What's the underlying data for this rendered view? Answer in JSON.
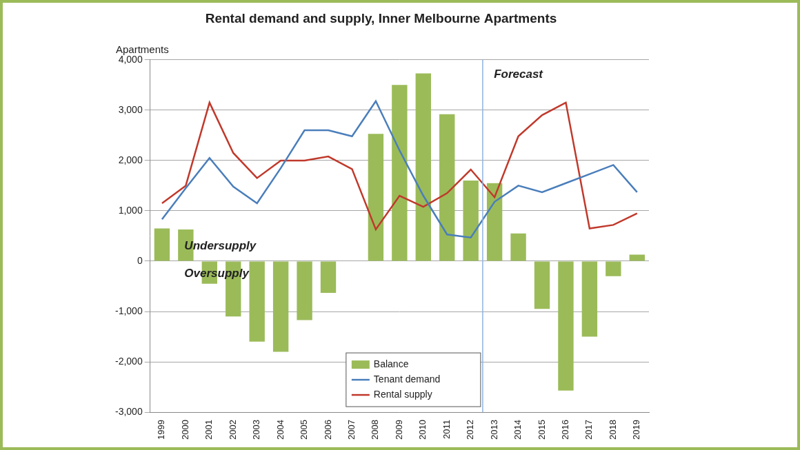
{
  "chart_data": {
    "type": "bar",
    "title": "Rental demand and supply, Inner Melbourne Apartments",
    "y_label": "Apartments",
    "categories": [
      "1999",
      "2000",
      "2001",
      "2002",
      "2003",
      "2004",
      "2005",
      "2006",
      "2007",
      "2008",
      "2009",
      "2010",
      "2011",
      "2012",
      "2013",
      "2014",
      "2015",
      "2016",
      "2017",
      "2018",
      "2019"
    ],
    "series": [
      {
        "name": "Balance",
        "type": "bar",
        "color": "#9bbb59",
        "values": [
          650,
          630,
          -450,
          -1100,
          -1600,
          -1800,
          -1170,
          -630,
          0,
          2530,
          3500,
          3730,
          2920,
          1600,
          1550,
          550,
          -950,
          -2570,
          -1500,
          -300,
          130
        ]
      },
      {
        "name": "Tenant demand",
        "type": "line",
        "color": "#4a7ebb",
        "values": [
          830,
          1450,
          2050,
          1480,
          1150,
          1850,
          2600,
          2600,
          2480,
          3180,
          2200,
          1300,
          530,
          470,
          1180,
          1500,
          1370,
          1550,
          1730,
          1910,
          1370
        ]
      },
      {
        "name": "Rental supply",
        "type": "line",
        "color": "#c0392b",
        "values": [
          1150,
          1500,
          3150,
          2150,
          1650,
          2000,
          2000,
          2080,
          1830,
          630,
          1300,
          1080,
          1350,
          1820,
          1270,
          2480,
          2900,
          3150,
          650,
          720,
          950
        ]
      }
    ],
    "ylim": [
      -3000,
      4000
    ],
    "yticks": [
      {
        "value": -3000,
        "label": "-3,000"
      },
      {
        "value": -2000,
        "label": "-2,000"
      },
      {
        "value": -1000,
        "label": "-1,000"
      },
      0,
      {
        "value": 1000,
        "label": "1,000"
      },
      {
        "value": 2000,
        "label": "2,000"
      },
      {
        "value": 3000,
        "label": "3,000"
      },
      {
        "value": 4000,
        "label": "4,000"
      }
    ],
    "grid": true,
    "legend": "lower center",
    "forecast_from": "2013",
    "annotations": [
      {
        "text": "Forecast",
        "x": "2014",
        "y": 3700
      },
      {
        "text": "Undersupply",
        "x": "2000",
        "y": 300
      },
      {
        "text": "Oversupply",
        "x": "2000",
        "y": -250
      }
    ]
  }
}
